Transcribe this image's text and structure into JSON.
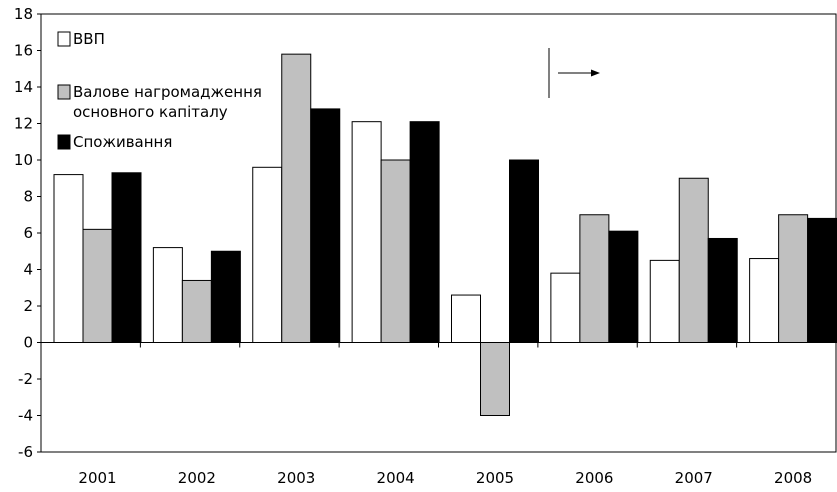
{
  "chart_data": {
    "type": "bar",
    "categories": [
      "2001",
      "2002",
      "2003",
      "2004",
      "2005",
      "2006",
      "2007",
      "2008"
    ],
    "series": [
      {
        "name": "ВВП",
        "color": "#ffffff",
        "values": [
          9.2,
          5.2,
          9.6,
          12.1,
          2.6,
          3.8,
          4.5,
          4.6
        ]
      },
      {
        "name": "Валове нагромадження основного капіталу",
        "name_lines": [
          "Валове нагромадження",
          "основного капіталу"
        ],
        "color": "#c0c0c0",
        "values": [
          6.2,
          3.4,
          15.8,
          10.0,
          -4.0,
          7.0,
          9.0,
          7.0
        ]
      },
      {
        "name": "Споживання",
        "color": "#000000",
        "values": [
          9.3,
          5.0,
          12.8,
          12.1,
          10.0,
          6.1,
          5.7,
          6.8
        ]
      }
    ],
    "ylim": [
      -6,
      18
    ],
    "yticks": [
      "-6",
      "-4",
      "-2",
      "0",
      "2",
      "4",
      "6",
      "8",
      "10",
      "12",
      "14",
      "16",
      "18"
    ],
    "grid": false,
    "legend_position": "top-left",
    "annotation": "arrow"
  }
}
